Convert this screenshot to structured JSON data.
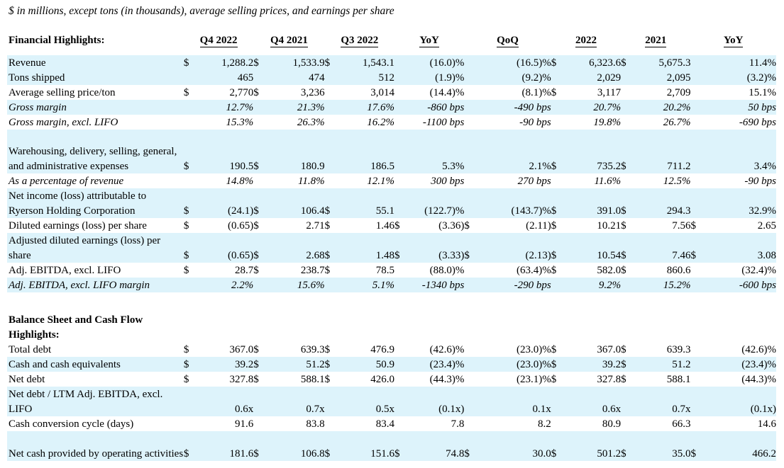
{
  "note": "$ in millions, except tons (in thousands), average selling prices, and earnings per share",
  "headers": {
    "section1": "Financial Highlights:",
    "cols": [
      "Q4 2022",
      "Q4 2021",
      "Q3 2022",
      "YoY",
      "QoQ",
      "2022",
      "2021",
      "YoY"
    ]
  },
  "rows": [
    {
      "label": "Revenue",
      "d": [
        "$",
        "$",
        "$",
        "",
        "",
        "$",
        "$",
        ""
      ],
      "v": [
        "1,288.2",
        "1,533.9",
        "1,543.1",
        "(16.0)%",
        "(16.5)%",
        "6,323.6",
        "5,675.3",
        "11.4%"
      ]
    },
    {
      "label": "Tons shipped",
      "d": [
        "",
        "",
        "",
        "",
        "",
        "",
        "",
        ""
      ],
      "v": [
        "465",
        "474",
        "512",
        "(1.9)%",
        "(9.2)%",
        "2,029",
        "2,095",
        "(3.2)%"
      ]
    },
    {
      "label": "Average selling price/ton",
      "d": [
        "$",
        "$",
        "",
        "",
        "",
        "$",
        "",
        ""
      ],
      "v": [
        "2,770",
        "3,236",
        "3,014",
        "(14.4)%",
        "(8.1)%",
        "3,117",
        "2,709",
        "15.1%"
      ]
    },
    {
      "label": "Gross margin",
      "d": [
        "",
        "",
        "",
        "",
        "",
        "",
        "",
        ""
      ],
      "v": [
        "12.7%",
        "21.3%",
        "17.6%",
        "-860 bps",
        "-490 bps",
        "20.7%",
        "20.2%",
        "50 bps"
      ]
    },
    {
      "label": "Gross margin, excl. LIFO",
      "d": [
        "",
        "",
        "",
        "",
        "",
        "",
        "",
        ""
      ],
      "v": [
        "15.3%",
        "26.3%",
        "16.2%",
        "-1100 bps",
        "-90 bps",
        "19.8%",
        "26.7%",
        "-690 bps"
      ]
    },
    {
      "label": "Warehousing, delivery, selling, general, and administrative expenses",
      "d": [
        "$",
        "$",
        "",
        "",
        "",
        "$",
        "$",
        ""
      ],
      "v": [
        "190.5",
        "180.9",
        "186.5",
        "5.3%",
        "2.1%",
        "735.2",
        "711.2",
        "3.4%"
      ]
    },
    {
      "label": "As a percentage of revenue",
      "d": [
        "",
        "",
        "",
        "",
        "",
        "",
        "",
        ""
      ],
      "v": [
        "14.8%",
        "11.8%",
        "12.1%",
        "300 bps",
        "270 bps",
        "11.6%",
        "12.5%",
        "-90 bps"
      ]
    },
    {
      "label": "Net income (loss) attributable to Ryerson Holding Corporation",
      "d": [
        "$",
        "$",
        "$",
        "",
        "",
        "$",
        "$",
        ""
      ],
      "v": [
        "(24.1)",
        "106.4",
        "55.1",
        "(122.7)%",
        "(143.7)%",
        "391.0",
        "294.3",
        "32.9%"
      ]
    },
    {
      "label": "Diluted earnings (loss) per share",
      "d": [
        "$",
        "$",
        "$",
        "$",
        "$",
        "$",
        "$",
        "$"
      ],
      "v": [
        "(0.65)",
        "2.71",
        "1.46",
        "(3.36)",
        "(2.11)",
        "10.21",
        "7.56",
        "2.65"
      ]
    },
    {
      "label": "Adjusted diluted earnings (loss) per share",
      "d": [
        "$",
        "$",
        "$",
        "$",
        "$",
        "$",
        "$",
        "$"
      ],
      "v": [
        "(0.65)",
        "2.68",
        "1.48",
        "(3.33)",
        "(2.13)",
        "10.54",
        "7.46",
        "3.08"
      ]
    },
    {
      "label": "Adj. EBITDA, excl. LIFO",
      "d": [
        "$",
        "$",
        "$",
        "",
        "",
        "$",
        "$",
        ""
      ],
      "v": [
        "28.7",
        "238.7",
        "78.5",
        "(88.0)%",
        "(63.4)%",
        "582.0",
        "860.6",
        "(32.4)%"
      ]
    },
    {
      "label": "Adj. EBITDA, excl. LIFO margin",
      "d": [
        "",
        "",
        "",
        "",
        "",
        "",
        "",
        ""
      ],
      "v": [
        "2.2%",
        "15.6%",
        "5.1%",
        "-1340 bps",
        "-290 bps",
        "9.2%",
        "15.2%",
        "-600 bps"
      ]
    }
  ],
  "section2": "Balance Sheet and Cash Flow Highlights:",
  "rows2": [
    {
      "label": "Total debt",
      "d": [
        "$",
        "$",
        "$",
        "",
        "",
        "$",
        "$",
        ""
      ],
      "v": [
        "367.0",
        "639.3",
        "476.9",
        "(42.6)%",
        "(23.0)%",
        "367.0",
        "639.3",
        "(42.6)%"
      ]
    },
    {
      "label": "Cash and cash equivalents",
      "d": [
        "$",
        "$",
        "$",
        "",
        "",
        "$",
        "$",
        ""
      ],
      "v": [
        "39.2",
        "51.2",
        "50.9",
        "(23.4)%",
        "(23.0)%",
        "39.2",
        "51.2",
        "(23.4)%"
      ]
    },
    {
      "label": "Net debt",
      "d": [
        "$",
        "$",
        "$",
        "",
        "",
        "$",
        "$",
        ""
      ],
      "v": [
        "327.8",
        "588.1",
        "426.0",
        "(44.3)%",
        "(23.1)%",
        "327.8",
        "588.1",
        "(44.3)%"
      ]
    },
    {
      "label": "Net debt / LTM Adj. EBITDA, excl. LIFO",
      "d": [
        "",
        "",
        "",
        "",
        "",
        "",
        "",
        ""
      ],
      "v": [
        "0.6x",
        "0.7x",
        "0.5x",
        "(0.1x)",
        "0.1x",
        "0.6x",
        "0.7x",
        "(0.1x)"
      ]
    },
    {
      "label": "Cash conversion cycle (days)",
      "d": [
        "",
        "",
        "",
        "",
        "",
        "",
        "",
        ""
      ],
      "v": [
        "91.6",
        "83.8",
        "83.4",
        "7.8",
        "8.2",
        "80.9",
        "66.3",
        "14.6"
      ]
    },
    {
      "label": "Net cash provided by operating activities",
      "d": [
        "$",
        "$",
        "$",
        "$",
        "$",
        "$",
        "$",
        "$"
      ],
      "v": [
        "181.6",
        "106.8",
        "151.6",
        "74.8",
        "30.0",
        "501.2",
        "35.0",
        "466.2"
      ]
    }
  ]
}
